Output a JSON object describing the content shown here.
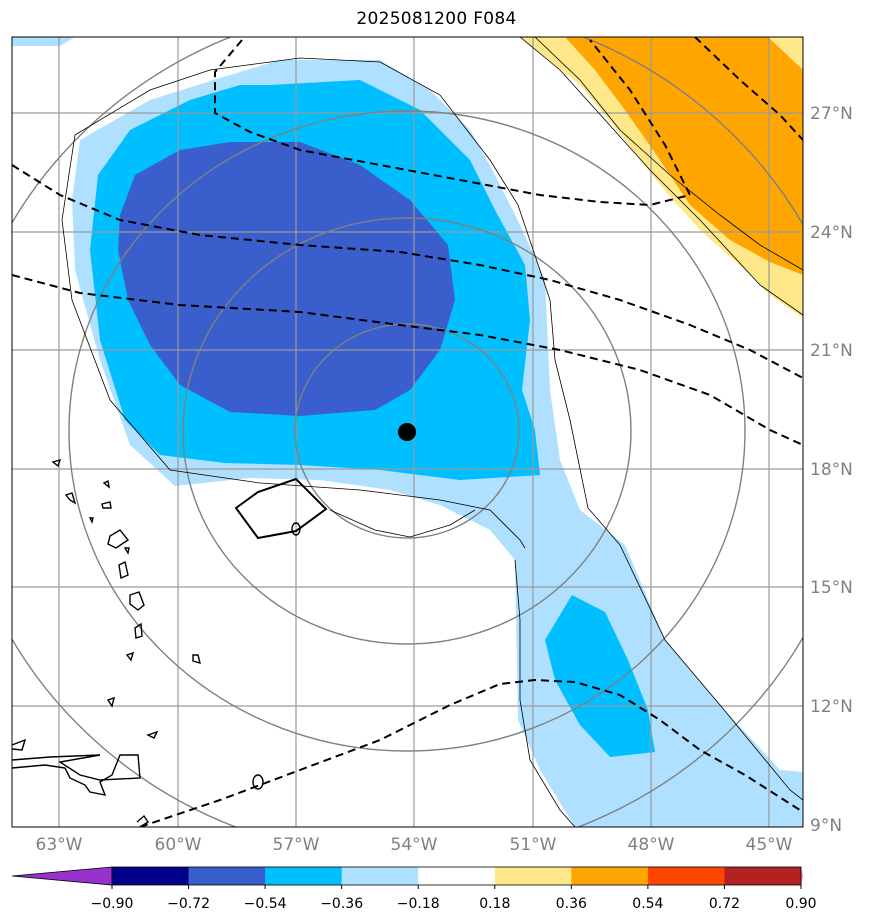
{
  "title": "2025081200 F084",
  "map": {
    "lon_range": [
      -64,
      -44.5
    ],
    "lat_range": [
      9,
      28.5
    ],
    "lon_ticks": [
      -63,
      -60,
      -57,
      -54,
      -51,
      -48,
      -45
    ],
    "lon_labels": [
      "63°W",
      "60°W",
      "57°W",
      "54°W",
      "51°W",
      "48°W",
      "45°W"
    ],
    "lat_ticks": [
      9,
      12,
      15,
      18,
      21,
      24,
      27
    ],
    "lat_labels": [
      "9°N",
      "12°N",
      "15°N",
      "18°N",
      "21°N",
      "24°N",
      "27°N"
    ],
    "center_marker": {
      "lon": -54.0,
      "lat": 18.9
    },
    "range_rings": "concentric rings around center marker",
    "fill_fields": "shaded anomaly field",
    "dashed_contours": "black dashed contour lines"
  },
  "colorbar": {
    "ticks": [
      "−0.90",
      "−0.72",
      "−0.54",
      "−0.36",
      "−0.18",
      "0.18",
      "0.36",
      "0.54",
      "0.72",
      "0.90"
    ],
    "colors": [
      "#9932CC",
      "#00008B",
      "#3A5FCD",
      "#00BFFF",
      "#B0E0FF",
      "#FFFFFF",
      "#FFE88A",
      "#FFA500",
      "#FF4500",
      "#B22222",
      "#FF88B0"
    ],
    "extend": "both"
  }
}
